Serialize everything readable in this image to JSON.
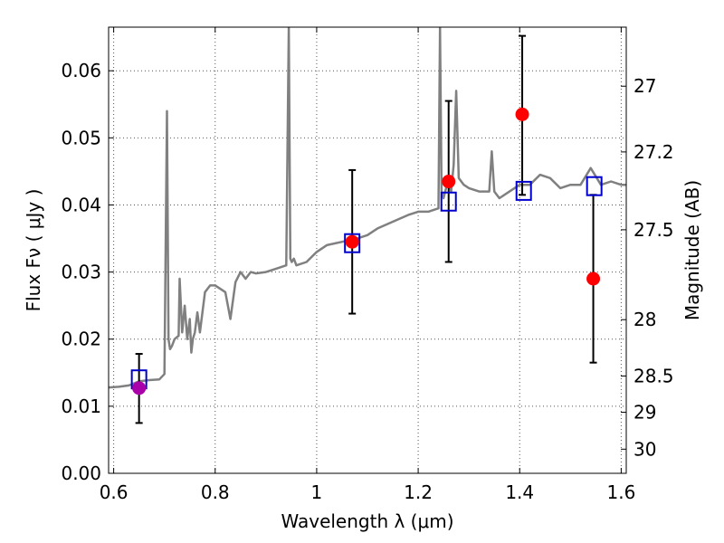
{
  "chart_data": {
    "type": "scatter",
    "title": "",
    "xlabel": "Wavelength  λ (μm)",
    "ylabel": "Flux  Fν  ( μJy )",
    "ylabel_right": "Magnitude (AB)",
    "xlim": [
      0.59,
      1.61
    ],
    "ylim": [
      0.0,
      0.0665
    ],
    "grid": true,
    "x_ticks": [
      0.6,
      0.8,
      1.0,
      1.2,
      1.4,
      1.6
    ],
    "x_tick_labels": [
      "0.6",
      "0.8",
      "1",
      "1.2",
      "1.4",
      "1.6"
    ],
    "y_ticks": [
      0.0,
      0.01,
      0.02,
      0.03,
      0.04,
      0.05,
      0.06
    ],
    "y_tick_labels": [
      "0.00",
      "0.01",
      "0.02",
      "0.03",
      "0.04",
      "0.05",
      "0.06"
    ],
    "right_ticks": [
      {
        "label": "27",
        "flux": 0.0577
      },
      {
        "label": "27.2",
        "flux": 0.0479
      },
      {
        "label": "27.5",
        "flux": 0.0363
      },
      {
        "label": "28",
        "flux": 0.0229
      },
      {
        "label": "28.5",
        "flux": 0.0145
      },
      {
        "label": "29",
        "flux": 0.0091
      },
      {
        "label": "30",
        "flux": 0.0036
      }
    ],
    "colors": {
      "model": "#808080",
      "observed": "#ff0000",
      "observed_special": "#aa00aa",
      "model_flux": "#0000cc",
      "errorbar": "#000000",
      "grid": "#555555"
    },
    "model_spectrum": {
      "x": [
        0.59,
        0.61,
        0.63,
        0.65,
        0.67,
        0.69,
        0.7,
        0.705,
        0.708,
        0.711,
        0.715,
        0.72,
        0.728,
        0.73,
        0.735,
        0.74,
        0.745,
        0.75,
        0.753,
        0.756,
        0.76,
        0.765,
        0.77,
        0.78,
        0.79,
        0.8,
        0.82,
        0.83,
        0.84,
        0.85,
        0.86,
        0.87,
        0.88,
        0.9,
        0.92,
        0.94,
        0.945,
        0.948,
        0.951,
        0.955,
        0.96,
        0.98,
        1.0,
        1.02,
        1.05,
        1.08,
        1.1,
        1.12,
        1.15,
        1.18,
        1.2,
        1.22,
        1.24,
        1.243,
        1.246,
        1.25,
        1.26,
        1.265,
        1.27,
        1.275,
        1.28,
        1.29,
        1.3,
        1.32,
        1.34,
        1.345,
        1.35,
        1.36,
        1.38,
        1.4,
        1.42,
        1.44,
        1.46,
        1.48,
        1.5,
        1.52,
        1.54,
        1.56,
        1.58,
        1.6,
        1.61
      ],
      "y": [
        0.0128,
        0.0129,
        0.0131,
        0.0137,
        0.0139,
        0.014,
        0.0148,
        0.054,
        0.02,
        0.0185,
        0.019,
        0.02,
        0.0205,
        0.029,
        0.021,
        0.025,
        0.02,
        0.023,
        0.018,
        0.02,
        0.021,
        0.024,
        0.021,
        0.027,
        0.028,
        0.028,
        0.027,
        0.023,
        0.0285,
        0.03,
        0.029,
        0.03,
        0.0298,
        0.03,
        0.0305,
        0.031,
        0.0665,
        0.032,
        0.0315,
        0.032,
        0.031,
        0.0315,
        0.033,
        0.034,
        0.0345,
        0.035,
        0.0355,
        0.0365,
        0.0375,
        0.0385,
        0.039,
        0.039,
        0.0395,
        0.0665,
        0.042,
        0.041,
        0.044,
        0.042,
        0.046,
        0.057,
        0.044,
        0.043,
        0.0425,
        0.042,
        0.042,
        0.048,
        0.042,
        0.041,
        0.042,
        0.043,
        0.043,
        0.0445,
        0.044,
        0.0425,
        0.043,
        0.043,
        0.0455,
        0.043,
        0.0435,
        0.043,
        0.043
      ]
    },
    "observed": [
      {
        "x": 0.65,
        "y": 0.0127,
        "yerr_low": 0.0075,
        "yerr_high": 0.0178,
        "color": "observed_special"
      },
      {
        "x": 1.07,
        "y": 0.0345,
        "yerr_low": 0.0238,
        "yerr_high": 0.0452,
        "color": "observed"
      },
      {
        "x": 1.26,
        "y": 0.0435,
        "yerr_low": 0.0315,
        "yerr_high": 0.0555,
        "color": "observed"
      },
      {
        "x": 1.405,
        "y": 0.0535,
        "yerr_low": 0.0415,
        "yerr_high": 0.0652,
        "color": "observed"
      },
      {
        "x": 1.545,
        "y": 0.029,
        "yerr_low": 0.0165,
        "yerr_high": 0.0415,
        "color": "observed"
      }
    ],
    "model_flux": [
      {
        "x": 0.65,
        "y": 0.014
      },
      {
        "x": 1.07,
        "y": 0.0343
      },
      {
        "x": 1.26,
        "y": 0.0405
      },
      {
        "x": 1.408,
        "y": 0.0421
      },
      {
        "x": 1.547,
        "y": 0.0428
      }
    ]
  }
}
